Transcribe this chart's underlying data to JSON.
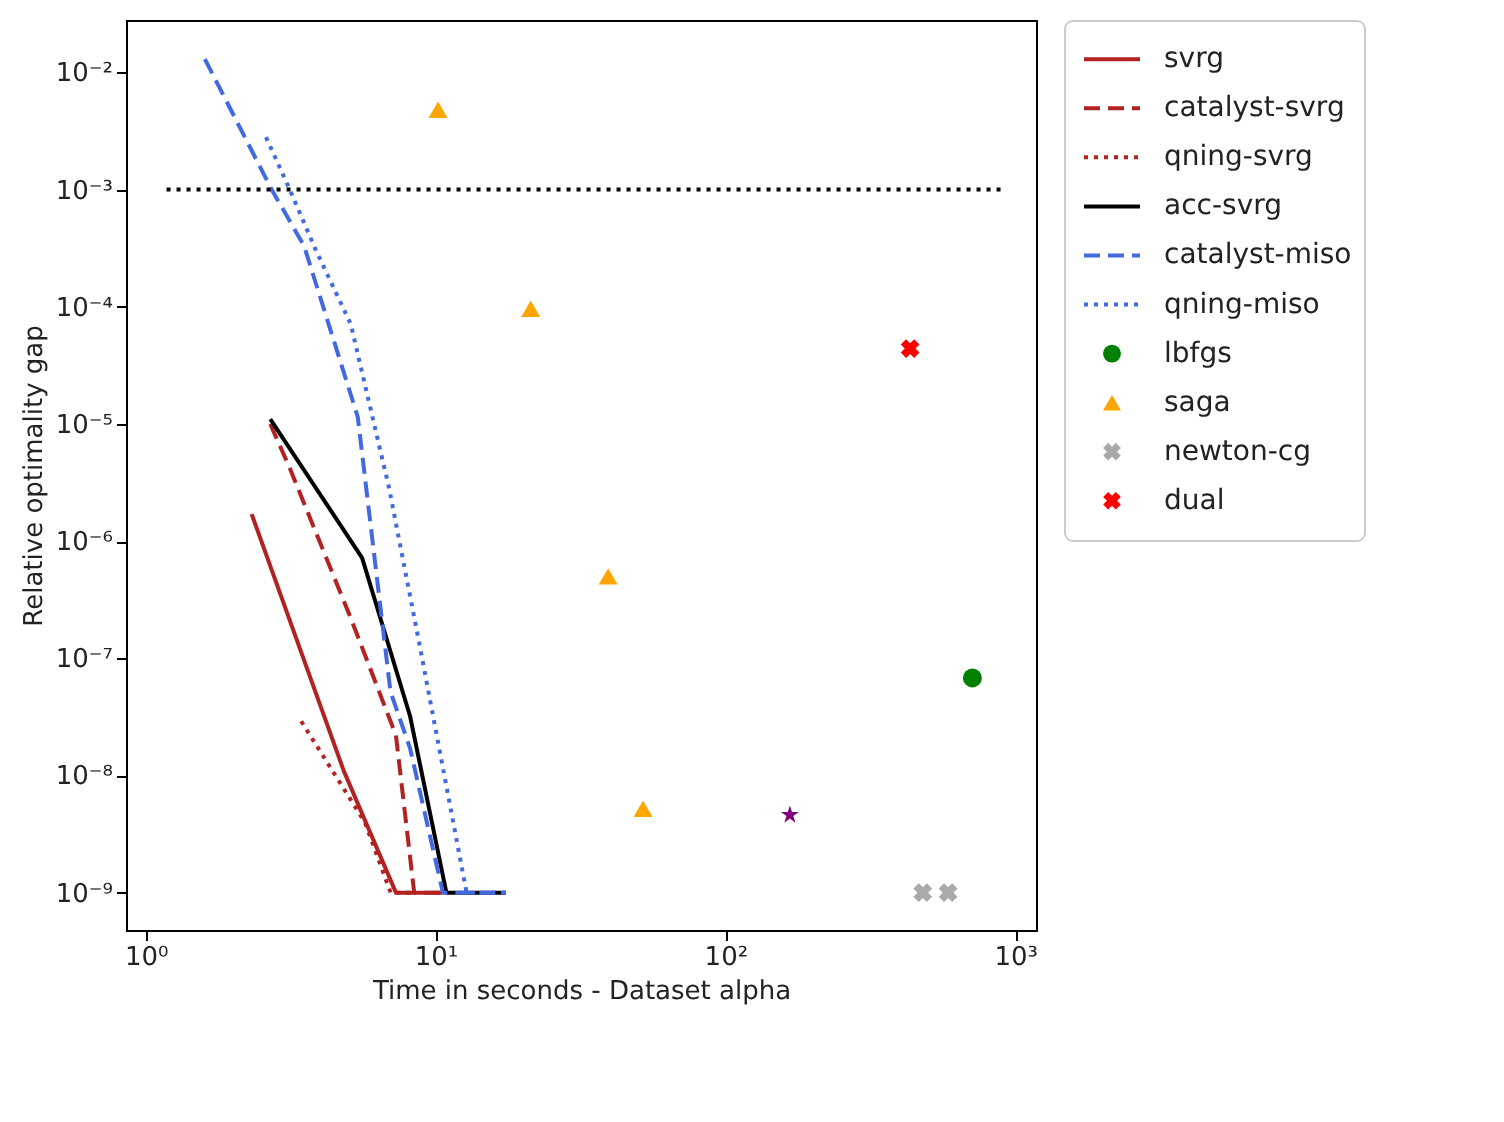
{
  "chart_data": {
    "type": "line",
    "xlabel": "Time in seconds - Dataset alpha",
    "ylabel": "Relative optimality gap",
    "log": "xy",
    "legend": "top right",
    "xlim": [
      0.855,
      1180
    ],
    "ylim": [
      4.8e-10,
      0.028
    ],
    "xticks": [
      {
        "value": 1,
        "label": "10⁰"
      },
      {
        "value": 10,
        "label": "10¹"
      },
      {
        "value": 100,
        "label": "10²"
      },
      {
        "value": 1000,
        "label": "10³"
      }
    ],
    "yticks": [
      {
        "value": 1e-09,
        "label": "10⁻⁹"
      },
      {
        "value": 1e-08,
        "label": "10⁻⁸"
      },
      {
        "value": 1e-07,
        "label": "10⁻⁷"
      },
      {
        "value": 1e-06,
        "label": "10⁻⁶"
      },
      {
        "value": 1e-05,
        "label": "10⁻⁵"
      },
      {
        "value": 0.0001,
        "label": "10⁻⁴"
      },
      {
        "value": 0.001,
        "label": "10⁻³"
      },
      {
        "value": 0.01,
        "label": "10⁻²"
      }
    ],
    "series": [
      {
        "type": "line",
        "name": "svrg",
        "color": "#b22222",
        "line_style": "solid",
        "x": [
          2.32,
          4.82,
          7.3,
          10.6
        ],
        "values": [
          1.7e-06,
          1.1e-08,
          1e-09,
          1e-09
        ]
      },
      {
        "type": "line",
        "name": "catalyst-svrg",
        "color": "#b22222",
        "line_style": "dashed",
        "x": [
          2.69,
          3.14,
          5.1,
          7.3,
          8.44,
          10.6
        ],
        "values": [
          1e-05,
          4.2e-06,
          2.2e-07,
          2.2e-08,
          1e-09,
          1e-09
        ]
      },
      {
        "type": "line",
        "name": "qning-svrg",
        "color": "#b22222",
        "line_style": "dotted",
        "x": [
          3.44,
          5.7,
          7.0,
          8.5
        ],
        "values": [
          2.9e-08,
          4e-09,
          1e-09,
          1e-09
        ]
      },
      {
        "type": "line",
        "name": "acc-svrg",
        "color": "#000000",
        "line_style": "solid",
        "x": [
          2.69,
          5.58,
          8.17,
          10.9,
          17.5
        ],
        "values": [
          1.1e-05,
          7.2e-07,
          3.2e-08,
          1e-09,
          1e-09
        ]
      },
      {
        "type": "line",
        "name": "catalyst-miso",
        "color": "#4169e1",
        "line_style": "dashed",
        "x": [
          1.6,
          2.72,
          3.52,
          5.39,
          6.99,
          8.17,
          10.6,
          17.5
        ],
        "values": [
          0.013,
          0.001,
          0.00033,
          1.15e-05,
          5.2e-08,
          1.7e-08,
          1e-09,
          1e-09
        ]
      },
      {
        "type": "line",
        "name": "qning-miso",
        "color": "#4169e1",
        "line_style": "dotted",
        "x": [
          2.6,
          3.14,
          3.85,
          5.1,
          6.9,
          8.76,
          12.8,
          17.5
        ],
        "values": [
          0.0028,
          0.001,
          0.00031,
          7.1e-05,
          2.9e-06,
          1.4e-07,
          1e-09,
          1e-09
        ]
      },
      {
        "type": "scatter",
        "name": "lbfgs",
        "color": "#008000",
        "marker": "circle",
        "x": [
          712
        ],
        "values": [
          6.8e-08
        ]
      },
      {
        "type": "scatter",
        "color": "#800080",
        "marker": "star",
        "x": [
          167
        ],
        "values": [
          4.6e-09
        ]
      },
      {
        "type": "scatter",
        "name": "saga",
        "color": "#ffa500",
        "marker": "triangle",
        "x": [
          10.2,
          21.3,
          39.4,
          52
        ],
        "values": [
          0.0048,
          9.6e-05,
          5e-07,
          5.2e-09
        ]
      },
      {
        "type": "scatter",
        "name": "newton-cg",
        "color": "#a9a9a9",
        "marker": "cross",
        "x": [
          480,
          587
        ],
        "values": [
          1e-09,
          1e-09
        ]
      },
      {
        "type": "scatter",
        "name": "dual",
        "color": "#ff0000",
        "marker": "cross",
        "x": [
          434
        ],
        "values": [
          4.4e-05
        ]
      },
      {
        "type": "line",
        "color": "#000000",
        "line_style": "dotted",
        "x": [
          1.18,
          930
        ],
        "values": [
          0.001,
          0.001
        ]
      }
    ]
  }
}
